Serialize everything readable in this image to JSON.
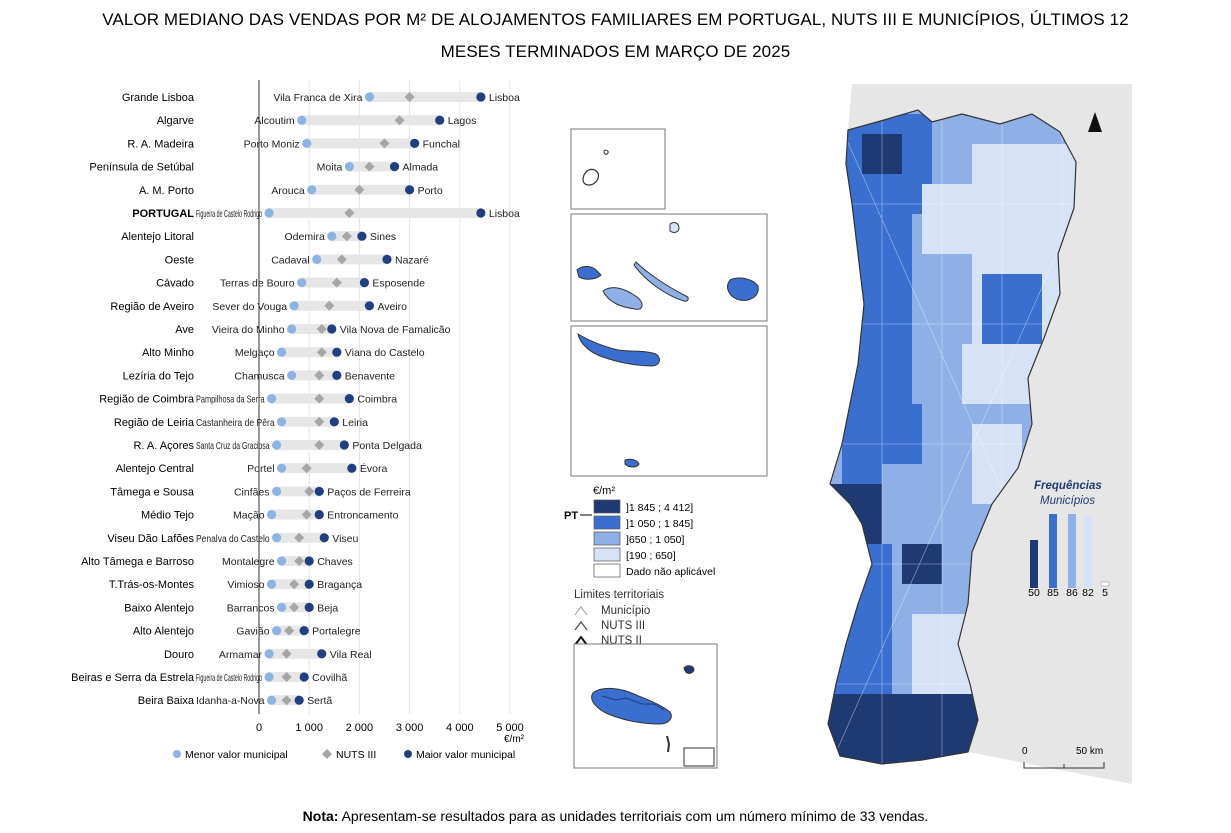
{
  "title_line1": "VALOR MEDIANO DAS VENDAS POR M² DE ALOJAMENTOS FAMILIARES EM PORTUGAL, NUTS III E MUNICÍPIOS, ÚLTIMOS 12",
  "title_line2": "MESES TERMINADOS EM MARÇO DE 2025",
  "chart_data": {
    "type": "dot-range",
    "title": "Valor mediano das vendas por m² de alojamentos familiares, NUTS III",
    "xlabel": "€/m²",
    "xlim": [
      0,
      5000
    ],
    "xticks": [
      0,
      1000,
      2000,
      3000,
      4000,
      5000
    ],
    "xtick_labels": [
      "0",
      "1 000",
      "2 000",
      "3 000",
      "4 000",
      "5 000"
    ],
    "legend": [
      "Menor valor municipal",
      "NUTS III",
      "Maior valor municipal"
    ],
    "colors": {
      "min": "#8db3e2",
      "nuts": "#a6a6a6",
      "max": "#1f3f7f",
      "bar": "#e6e6e6"
    },
    "rows": [
      {
        "region": "Grande Lisboa",
        "min": 2200,
        "nuts": 3000,
        "max": 4420,
        "min_label": "Vila Franca de Xira",
        "max_label": "Lisboa"
      },
      {
        "region": "Algarve",
        "min": 850,
        "nuts": 2800,
        "max": 3600,
        "min_label": "Alcoutim",
        "max_label": "Lagos"
      },
      {
        "region": "R. A. Madeira",
        "min": 950,
        "nuts": 2500,
        "max": 3100,
        "min_label": "Porto Moniz",
        "max_label": "Funchal"
      },
      {
        "region": "Península de Setúbal",
        "min": 1800,
        "nuts": 2200,
        "max": 2700,
        "min_label": "Moita",
        "max_label": "Almada"
      },
      {
        "region": "A. M. Porto",
        "min": 1050,
        "nuts": 2000,
        "max": 3000,
        "min_label": "Arouca",
        "max_label": "Porto"
      },
      {
        "region": "PORTUGAL",
        "min": 200,
        "nuts": 1800,
        "max": 4420,
        "min_label": "Figueira de Castelo Rodrigo",
        "max_label": "Lisboa"
      },
      {
        "region": "Alentejo Litoral",
        "min": 1450,
        "nuts": 1750,
        "max": 2050,
        "min_label": "Odemira",
        "max_label": "Sines"
      },
      {
        "region": "Oeste",
        "min": 1150,
        "nuts": 1650,
        "max": 2550,
        "min_label": "Cadaval",
        "max_label": "Nazaré"
      },
      {
        "region": "Cávado",
        "min": 850,
        "nuts": 1550,
        "max": 2100,
        "min_label": "Terras de Bouro",
        "max_label": "Esposende"
      },
      {
        "region": "Região de Aveiro",
        "min": 700,
        "nuts": 1400,
        "max": 2200,
        "min_label": "Sever do Vouga",
        "max_label": "Aveiro"
      },
      {
        "region": "Ave",
        "min": 650,
        "nuts": 1250,
        "max": 1450,
        "min_label": "Vieira do Minho",
        "max_label": "Vila Nova de Famalicão"
      },
      {
        "region": "Alto Minho",
        "min": 450,
        "nuts": 1250,
        "max": 1550,
        "min_label": "Melgaço",
        "max_label": "Viana do Castelo"
      },
      {
        "region": "Lezíria do Tejo",
        "min": 650,
        "nuts": 1200,
        "max": 1550,
        "min_label": "Chamusca",
        "max_label": "Benavente"
      },
      {
        "region": "Região de Coimbra",
        "min": 250,
        "nuts": 1200,
        "max": 1800,
        "min_label": "Pampilhosa da Serra",
        "max_label": "Coimbra"
      },
      {
        "region": "Região de Leiria",
        "min": 450,
        "nuts": 1200,
        "max": 1500,
        "min_label": "Castanheira de Pêra",
        "max_label": "Leiria"
      },
      {
        "region": "R. A. Açores",
        "min": 350,
        "nuts": 1200,
        "max": 1700,
        "min_label": "Santa Cruz da Graciosa",
        "max_label": "Ponta Delgada"
      },
      {
        "region": "Alentejo Central",
        "min": 450,
        "nuts": 950,
        "max": 1850,
        "min_label": "Portel",
        "max_label": "Évora"
      },
      {
        "region": "Tâmega e Sousa",
        "min": 350,
        "nuts": 1000,
        "max": 1200,
        "min_label": "Cinfães",
        "max_label": "Paços de Ferreira"
      },
      {
        "region": "Médio Tejo",
        "min": 250,
        "nuts": 950,
        "max": 1200,
        "min_label": "Mação",
        "max_label": "Entroncamento"
      },
      {
        "region": "Viseu Dão Lafões",
        "min": 350,
        "nuts": 800,
        "max": 1300,
        "min_label": "Penalva do Castelo",
        "max_label": "Viseu"
      },
      {
        "region": "Alto Tâmega e Barroso",
        "min": 450,
        "nuts": 800,
        "max": 1000,
        "min_label": "Montalegre",
        "max_label": "Chaves"
      },
      {
        "region": "T.Trás-os-Montes",
        "min": 250,
        "nuts": 700,
        "max": 1000,
        "min_label": "Vimioso",
        "max_label": "Bragança"
      },
      {
        "region": "Baixo Alentejo",
        "min": 450,
        "nuts": 700,
        "max": 1000,
        "min_label": "Barrancos",
        "max_label": "Beja"
      },
      {
        "region": "Alto Alentejo",
        "min": 350,
        "nuts": 600,
        "max": 900,
        "min_label": "Gavião",
        "max_label": "Portalegre"
      },
      {
        "region": "Douro",
        "min": 200,
        "nuts": 550,
        "max": 1250,
        "min_label": "Armamar",
        "max_label": "Vila Real"
      },
      {
        "region": "Beiras e Serra da Estrela",
        "min": 200,
        "nuts": 550,
        "max": 900,
        "min_label": "Figueira de Castelo Rodrigo",
        "max_label": "Covilhã"
      },
      {
        "region": "Beira Baixa",
        "min": 250,
        "nuts": 550,
        "max": 800,
        "min_label": "Idanha-a-Nova",
        "max_label": "Sertã"
      }
    ]
  },
  "map": {
    "legend_unit": "€/m²",
    "pt_label": "PT",
    "classes": [
      {
        "label": "]1 845 ; 4 412]",
        "color": "#1f3a73"
      },
      {
        "label": "]1 050 ; 1 845]",
        "color": "#3a6fcf"
      },
      {
        "label": "]650 ; 1 050]",
        "color": "#8eb0e6"
      },
      {
        "label": "[190 ; 650]",
        "color": "#d6e2f5"
      },
      {
        "label": "Dado não aplicável",
        "color": "#ffffff"
      }
    ],
    "limits_title": "Limites territoriais",
    "limits": [
      "Município",
      "NUTS III",
      "NUTS II"
    ],
    "freq_title": "Frequências",
    "freq_subtitle": "Municípios",
    "frequencies": [
      50,
      85,
      86,
      82,
      5
    ],
    "frequency_labels": [
      "50",
      "85",
      "86",
      "82",
      "5"
    ],
    "scale_labels": [
      "0",
      "50 km"
    ]
  },
  "note_bold": "Nota:",
  "note_text": " Apresentam-se resultados para as unidades territoriais com um número mínimo de 33 vendas."
}
